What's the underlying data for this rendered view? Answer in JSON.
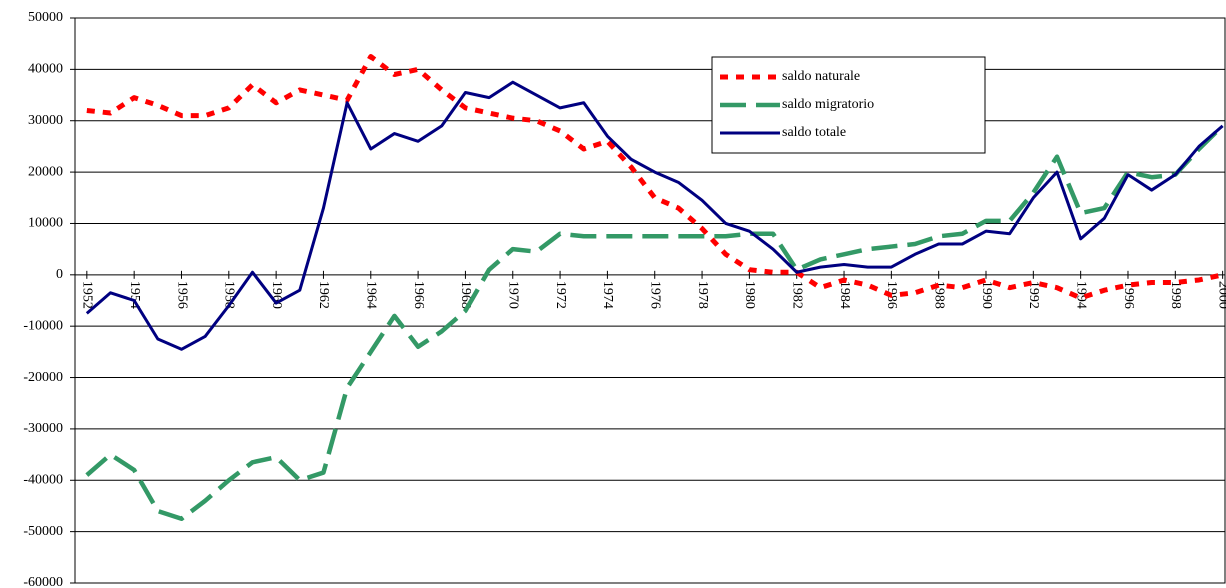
{
  "chart_data": {
    "type": "line",
    "x": [
      1952,
      1953,
      1954,
      1955,
      1956,
      1957,
      1958,
      1959,
      1960,
      1961,
      1962,
      1963,
      1964,
      1965,
      1966,
      1967,
      1968,
      1969,
      1970,
      1971,
      1972,
      1973,
      1974,
      1975,
      1976,
      1977,
      1978,
      1979,
      1980,
      1981,
      1982,
      1983,
      1984,
      1985,
      1986,
      1987,
      1988,
      1989,
      1990,
      1991,
      1992,
      1993,
      1994,
      1995,
      1996,
      1997,
      1998,
      1999,
      2000
    ],
    "xlim": [
      1951.5,
      2000.1
    ],
    "xticks": [
      1952,
      1954,
      1956,
      1958,
      1960,
      1962,
      1964,
      1966,
      1968,
      1970,
      1972,
      1974,
      1976,
      1978,
      1980,
      1982,
      1984,
      1986,
      1988,
      1990,
      1992,
      1994,
      1996,
      1998,
      2000
    ],
    "ylim": [
      -60000,
      50000
    ],
    "yticks": [
      -60000,
      -50000,
      -40000,
      -30000,
      -20000,
      -10000,
      0,
      10000,
      20000,
      30000,
      40000,
      50000
    ],
    "grid": true,
    "legend": "top-right",
    "series": [
      {
        "name": "saldo naturale",
        "color": "#ff0000",
        "style": "dotted",
        "values": [
          32000,
          31500,
          34500,
          33000,
          31000,
          31000,
          32500,
          37000,
          33500,
          36000,
          35000,
          34000,
          42500,
          39000,
          40000,
          36000,
          32500,
          31500,
          30500,
          30000,
          28000,
          24500,
          26000,
          21000,
          15000,
          13000,
          9000,
          4000,
          1000,
          500,
          500,
          -2500,
          -1000,
          -2000,
          -4000,
          -3500,
          -2000,
          -2500,
          -1000,
          -2500,
          -1500,
          -2500,
          -4500,
          -3000,
          -2000,
          -1500,
          -1500,
          -1000,
          0
        ]
      },
      {
        "name": "saldo migratorio",
        "color": "#339966",
        "style": "dashed",
        "values": [
          -39000,
          -35000,
          -38000,
          -46000,
          -47500,
          -44000,
          -40000,
          -36500,
          -35500,
          -40000,
          -38500,
          -22000,
          -15000,
          -8000,
          -14000,
          -11000,
          -7000,
          1000,
          5000,
          4500,
          8000,
          7500,
          7500,
          7500,
          7500,
          7500,
          7500,
          7500,
          8000,
          8000,
          1000,
          3000,
          4000,
          5000,
          5500,
          6000,
          7500,
          8000,
          10500,
          10500,
          16000,
          23000,
          12000,
          13000,
          20000,
          19000,
          19500,
          24500,
          29000
        ]
      },
      {
        "name": "saldo totale",
        "color": "#000080",
        "style": "solid",
        "values": [
          -7500,
          -3500,
          -5000,
          -12500,
          -14500,
          -12000,
          -6000,
          500,
          -5500,
          -3000,
          13000,
          33500,
          24500,
          27500,
          26000,
          29000,
          35500,
          34500,
          37500,
          35000,
          32500,
          33500,
          27000,
          22500,
          20000,
          18000,
          14500,
          10000,
          8500,
          5000,
          500,
          1500,
          2000,
          1500,
          1500,
          4000,
          6000,
          6000,
          8500,
          8000,
          15000,
          20000,
          7000,
          11000,
          19500,
          16500,
          19500,
          25000,
          29000
        ]
      }
    ]
  }
}
